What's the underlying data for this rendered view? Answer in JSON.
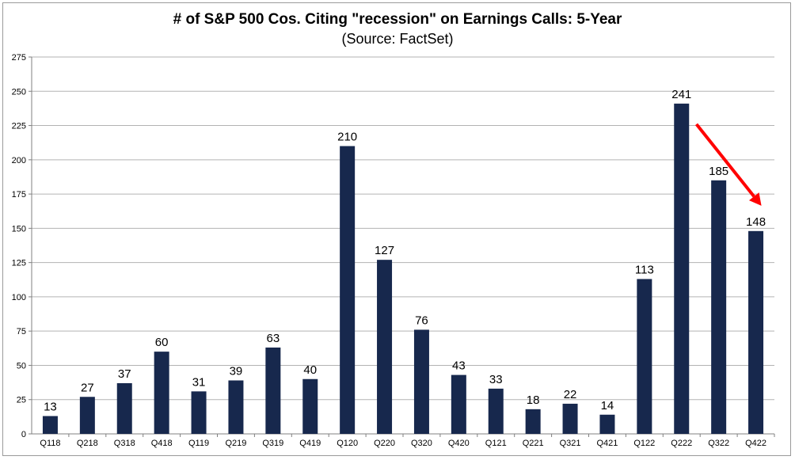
{
  "chart_data": {
    "type": "bar",
    "title": "# of S&P 500 Cos. Citing \"recession\" on Earnings Calls: 5-Year",
    "subtitle": "(Source: FactSet)",
    "categories": [
      "Q118",
      "Q218",
      "Q318",
      "Q418",
      "Q119",
      "Q219",
      "Q319",
      "Q419",
      "Q120",
      "Q220",
      "Q320",
      "Q420",
      "Q121",
      "Q221",
      "Q321",
      "Q421",
      "Q122",
      "Q222",
      "Q322",
      "Q422"
    ],
    "values": [
      13,
      27,
      37,
      60,
      31,
      39,
      63,
      40,
      210,
      127,
      76,
      43,
      33,
      18,
      22,
      14,
      113,
      241,
      185,
      148
    ],
    "ylim": [
      0,
      275
    ],
    "yticks": [
      0,
      25,
      50,
      75,
      100,
      125,
      150,
      175,
      200,
      225,
      250,
      275
    ],
    "grid": true,
    "bar_color": "#17284d",
    "annotation_arrow_color": "#ff0000"
  }
}
